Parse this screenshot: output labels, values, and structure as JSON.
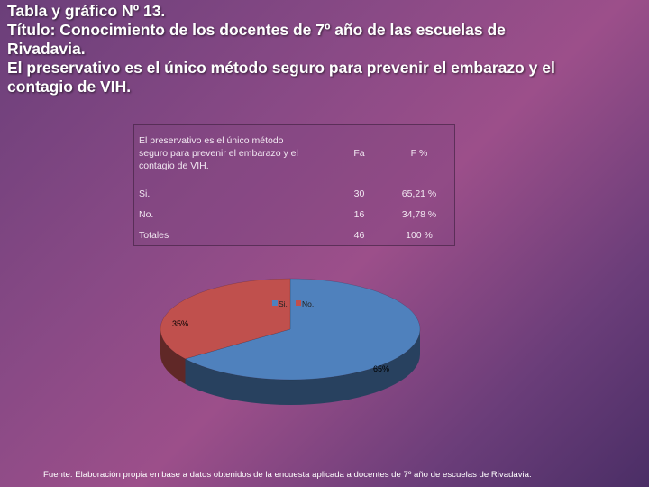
{
  "header": {
    "line1": "Tabla y gráfico Nº 13.",
    "line2": "Título: Conocimiento de los docentes de 7º año de las escuelas de",
    "line3": "Rivadavia.",
    "line4": "El preservativo es el único método seguro para prevenir el embarazo y el",
    "line5": "contagio de VIH."
  },
  "table": {
    "header": {
      "col1_line1": "El preservativo es el único método",
      "col1_line2": "seguro para prevenir el embarazo y el",
      "col1_line3": "contagio de VIH.",
      "col2": "Fa",
      "col3": "F %"
    },
    "rows": [
      {
        "label": "Si.",
        "fa": "30",
        "f": "65,21 %"
      },
      {
        "label": "No.",
        "fa": "16",
        "f": "34,78 %"
      },
      {
        "label": "Totales",
        "fa": "46",
        "f": "100 %"
      }
    ]
  },
  "chart_data": {
    "type": "pie",
    "categories": [
      "Si.",
      "No."
    ],
    "values": [
      65,
      35
    ],
    "data_labels": [
      "65%",
      "35%"
    ],
    "colors": [
      "#4f81bd",
      "#c0504d"
    ],
    "legend": "top"
  },
  "footer": {
    "source": "Fuente: Elaboración propia en base a  datos obtenidos de la encuesta aplicada a docentes de 7º año de escuelas de Rivadavia."
  }
}
